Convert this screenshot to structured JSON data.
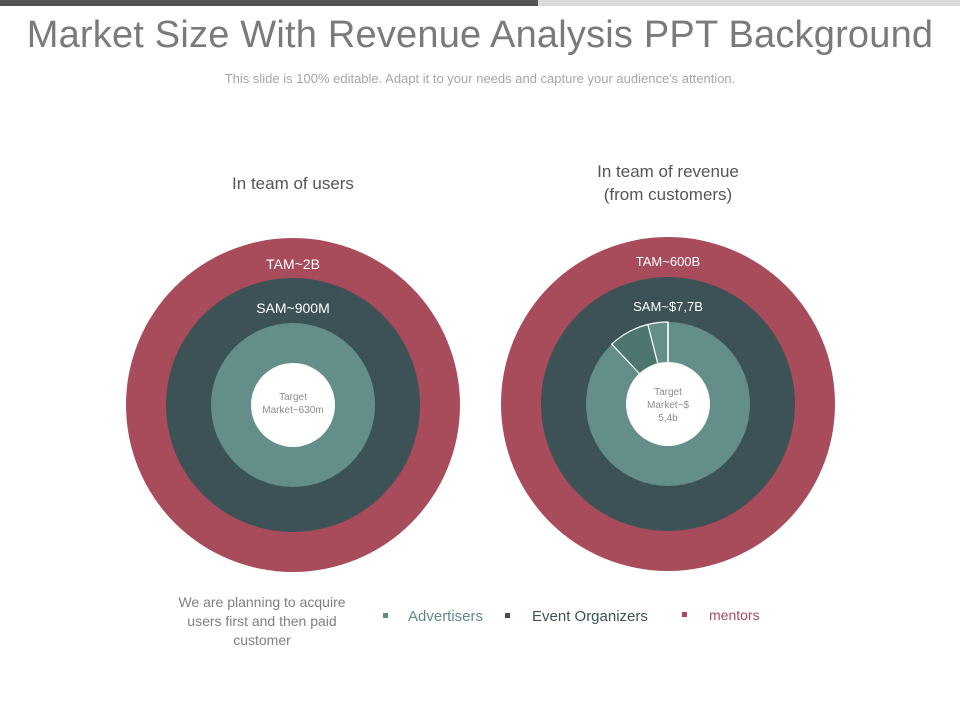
{
  "slide": {
    "title": "Market Size With Revenue Analysis PPT Background",
    "subtitle": "This slide is 100% editable. Adapt it to your needs and capture your audience's attention."
  },
  "left": {
    "heading": "In team of users",
    "tam": "TAM~2B",
    "sam": "SAM~900M",
    "target_line1": "Target",
    "target_line2": "Market~630m",
    "note": "We are planning to acquire users first and then paid customer"
  },
  "right": {
    "heading_line1": "In team of revenue",
    "heading_line2": "(from customers)",
    "tam": "TAM~600B",
    "sam": "SAM~$7,7B",
    "target_line1": "Target",
    "target_line2": "Market~$",
    "target_line3": "5,4b"
  },
  "legend": [
    {
      "label": "Advertisers",
      "color": "#5f8a86"
    },
    {
      "label": "Event Organizers",
      "color": "#3d5256"
    },
    {
      "label": "mentors",
      "color": "#a84b5b"
    }
  ],
  "colors": {
    "tam": "#a84b5b",
    "sam": "#3d5256",
    "target": "#638e89",
    "accent_slice": "#4e7671",
    "text_light": "#ffffff"
  }
}
